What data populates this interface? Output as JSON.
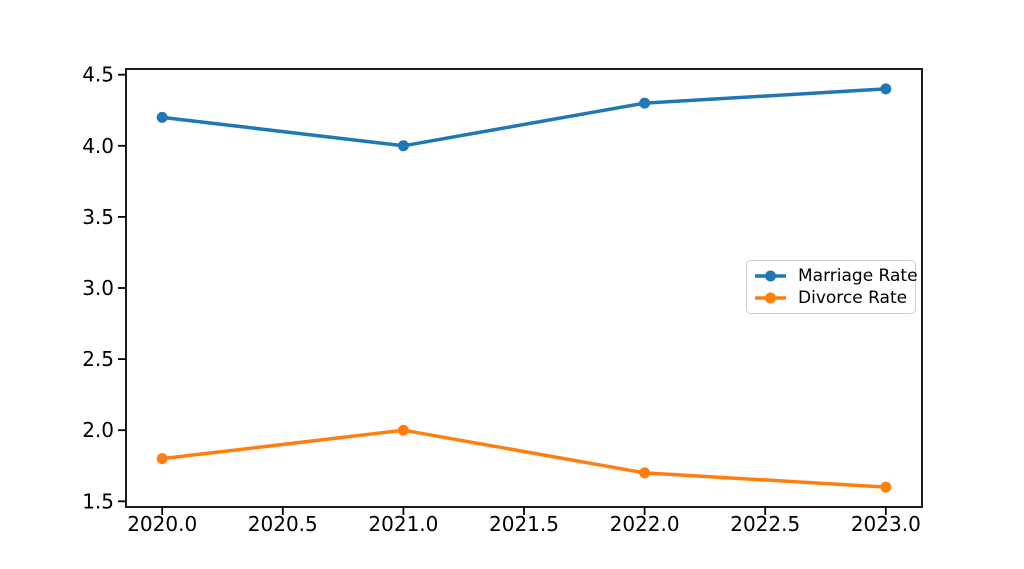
{
  "figure": {
    "background_color": "#ffffff",
    "axis_color": "#000000",
    "tick_label_color": "#000000",
    "legend_border_color": "#cccccc",
    "legend_background_color": "#ffffff"
  },
  "chart_data": {
    "type": "line",
    "title": "",
    "xlabel": "",
    "ylabel": "",
    "x": [
      2020,
      2021,
      2022,
      2023
    ],
    "series": [
      {
        "name": "Marriage Rate",
        "color": "#1f77b4",
        "values": [
          4.2,
          4.0,
          4.3,
          4.4
        ]
      },
      {
        "name": "Divorce Rate",
        "color": "#ff7f0e",
        "values": [
          1.8,
          2.0,
          1.7,
          1.6
        ]
      }
    ],
    "xlim": [
      2019.85,
      2023.15
    ],
    "ylim": [
      1.46,
      4.54
    ],
    "xticks": [
      2020.0,
      2020.5,
      2021.0,
      2021.5,
      2022.0,
      2022.5,
      2023.0
    ],
    "xtick_labels": [
      "2020.0",
      "2020.5",
      "2021.0",
      "2021.5",
      "2022.0",
      "2022.5",
      "2023.0"
    ],
    "yticks": [
      1.5,
      2.0,
      2.5,
      3.0,
      3.5,
      4.0,
      4.5
    ],
    "ytick_labels": [
      "1.5",
      "2.0",
      "2.5",
      "3.0",
      "3.5",
      "4.0",
      "4.5"
    ],
    "grid": false,
    "marker_style": "circle",
    "legend": {
      "position": "center right",
      "entries": [
        "Marriage Rate",
        "Divorce Rate"
      ]
    }
  }
}
